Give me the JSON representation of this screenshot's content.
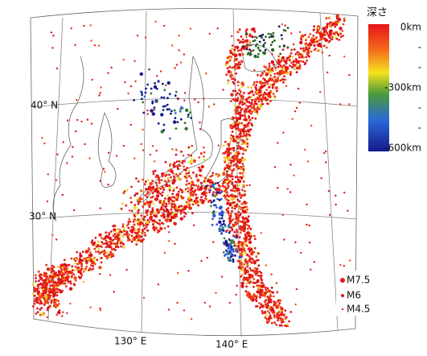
{
  "legend": {
    "title": "深さ",
    "labels": [
      "0km",
      "-",
      "-",
      "-300km",
      "-",
      "-",
      "-600km"
    ]
  },
  "graticule": {
    "latitudes": [
      "40° N",
      "30° N"
    ],
    "longitudes": [
      "130° E",
      "140° E"
    ]
  },
  "magnitudes": [
    "M7.5",
    "M6",
    "M4.5"
  ]
}
